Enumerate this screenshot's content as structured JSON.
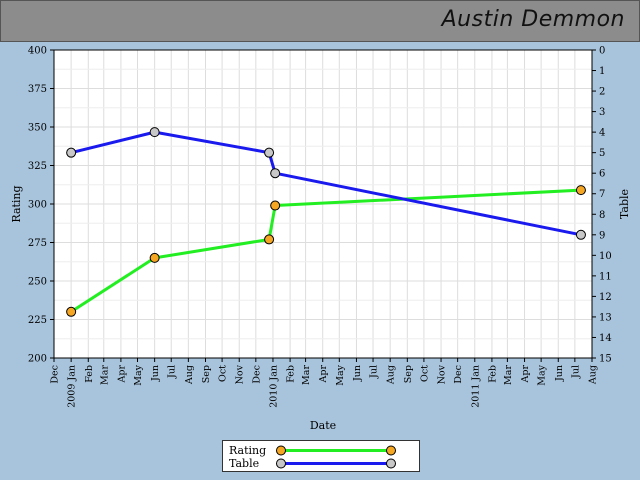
{
  "header": {
    "title": "Austin Demmon"
  },
  "chart_data": {
    "type": "line",
    "xlabel": "Date",
    "ylabel_left": "Rating",
    "ylabel_right": "Table",
    "ylim_left": [
      200,
      400
    ],
    "yticks_left": [
      200,
      225,
      250,
      275,
      300,
      325,
      350,
      375,
      400
    ],
    "ylim_right": [
      0,
      15
    ],
    "right_axis_inverted": true,
    "yticks_right": [
      0,
      1,
      2,
      3,
      4,
      5,
      6,
      7,
      8,
      9,
      10,
      11,
      12,
      13,
      14,
      15
    ],
    "xlim": [
      "2008-12-01",
      "2011-08-01"
    ],
    "x_tick_labels": [
      "Dec",
      "2009 Jan",
      "Feb",
      "Mar",
      "Apr",
      "May",
      "Jun",
      "Jul",
      "Aug",
      "Sep",
      "Oct",
      "Nov",
      "Dec",
      "2010 Jan",
      "Feb",
      "Mar",
      "Apr",
      "May",
      "Jun",
      "Jul",
      "Aug",
      "Sep",
      "Oct",
      "Nov",
      "Dec",
      "2011 Jan",
      "Feb",
      "Mar",
      "Apr",
      "May",
      "Jun",
      "Jul",
      "Aug"
    ],
    "grid": true,
    "legend_position": "bottom-center",
    "series": [
      {
        "name": "Rating",
        "axis": "left",
        "color": "#22ee22",
        "marker_color": "#f5a623",
        "points": [
          {
            "x": "2009-01-01",
            "y": 230
          },
          {
            "x": "2009-06-01",
            "y": 265
          },
          {
            "x": "2009-12-25",
            "y": 277
          },
          {
            "x": "2010-01-05",
            "y": 299
          },
          {
            "x": "2011-07-12",
            "y": 309
          }
        ]
      },
      {
        "name": "Table",
        "axis": "right",
        "color": "#1a1aee",
        "marker_color": "#c8c8c8",
        "points": [
          {
            "x": "2009-01-01",
            "y": 5
          },
          {
            "x": "2009-06-01",
            "y": 4
          },
          {
            "x": "2009-12-25",
            "y": 5
          },
          {
            "x": "2010-01-05",
            "y": 6
          },
          {
            "x": "2011-07-12",
            "y": 9
          }
        ]
      }
    ]
  }
}
